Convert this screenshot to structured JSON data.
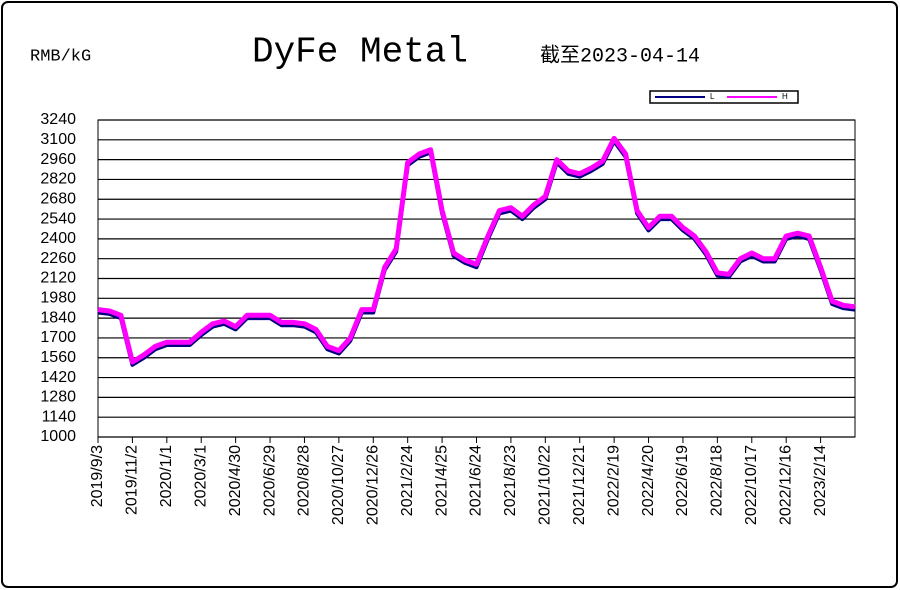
{
  "chart_data": {
    "type": "line",
    "title": "DyFe Metal",
    "y_label": "RMB/kG",
    "subtitle": "截至2023-04-14",
    "categories": [
      "2019/9/3",
      null,
      null,
      "2019/11/2",
      null,
      null,
      "2020/1/1",
      null,
      null,
      "2020/3/1",
      null,
      null,
      "2020/4/30",
      null,
      null,
      "2020/6/29",
      null,
      null,
      "2020/8/28",
      null,
      null,
      "2020/10/27",
      null,
      null,
      "2020/12/26",
      null,
      null,
      "2021/2/24",
      null,
      null,
      "2021/4/25",
      null,
      null,
      "2021/6/24",
      null,
      null,
      "2021/8/23",
      null,
      null,
      "2021/10/22",
      null,
      null,
      "2021/12/21",
      null,
      null,
      "2022/2/19",
      null,
      null,
      "2022/4/20",
      null,
      null,
      "2022/6/19",
      null,
      null,
      "2022/8/18",
      null,
      null,
      "2022/10/17",
      null,
      null,
      "2022/12/16",
      null,
      null,
      "2023/2/14",
      null,
      null,
      null
    ],
    "series": [
      {
        "name": "L",
        "color": "#000080",
        "values": [
          1880,
          1870,
          1840,
          1510,
          1560,
          1620,
          1650,
          1650,
          1650,
          1720,
          1780,
          1800,
          1760,
          1840,
          1840,
          1840,
          1790,
          1790,
          1780,
          1740,
          1620,
          1590,
          1680,
          1880,
          1880,
          2180,
          2310,
          2920,
          2980,
          3010,
          2580,
          2280,
          2230,
          2200,
          2400,
          2580,
          2600,
          2540,
          2620,
          2680,
          2940,
          2860,
          2840,
          2880,
          2930,
          3090,
          2980,
          2580,
          2460,
          2540,
          2540,
          2460,
          2400,
          2290,
          2140,
          2130,
          2240,
          2280,
          2240,
          2240,
          2400,
          2420,
          2400,
          2180,
          1940,
          1910,
          1900
        ]
      },
      {
        "name": "H",
        "color": "#ff00ff",
        "values": [
          1900,
          1890,
          1860,
          1530,
          1580,
          1640,
          1670,
          1670,
          1670,
          1740,
          1800,
          1820,
          1780,
          1860,
          1860,
          1860,
          1810,
          1810,
          1800,
          1760,
          1640,
          1610,
          1700,
          1900,
          1900,
          2200,
          2330,
          2940,
          3000,
          3030,
          2600,
          2300,
          2250,
          2220,
          2420,
          2600,
          2620,
          2560,
          2640,
          2700,
          2960,
          2880,
          2860,
          2900,
          2950,
          3110,
          3000,
          2600,
          2480,
          2560,
          2560,
          2480,
          2420,
          2310,
          2160,
          2150,
          2260,
          2300,
          2260,
          2260,
          2420,
          2440,
          2420,
          2200,
          1960,
          1930,
          1920
        ]
      }
    ],
    "ylim": [
      1000,
      3240
    ],
    "yticks": [
      1000,
      1140,
      1280,
      1420,
      1560,
      1700,
      1840,
      1980,
      2120,
      2260,
      2400,
      2540,
      2680,
      2820,
      2960,
      3100,
      3240
    ],
    "grid": true
  }
}
